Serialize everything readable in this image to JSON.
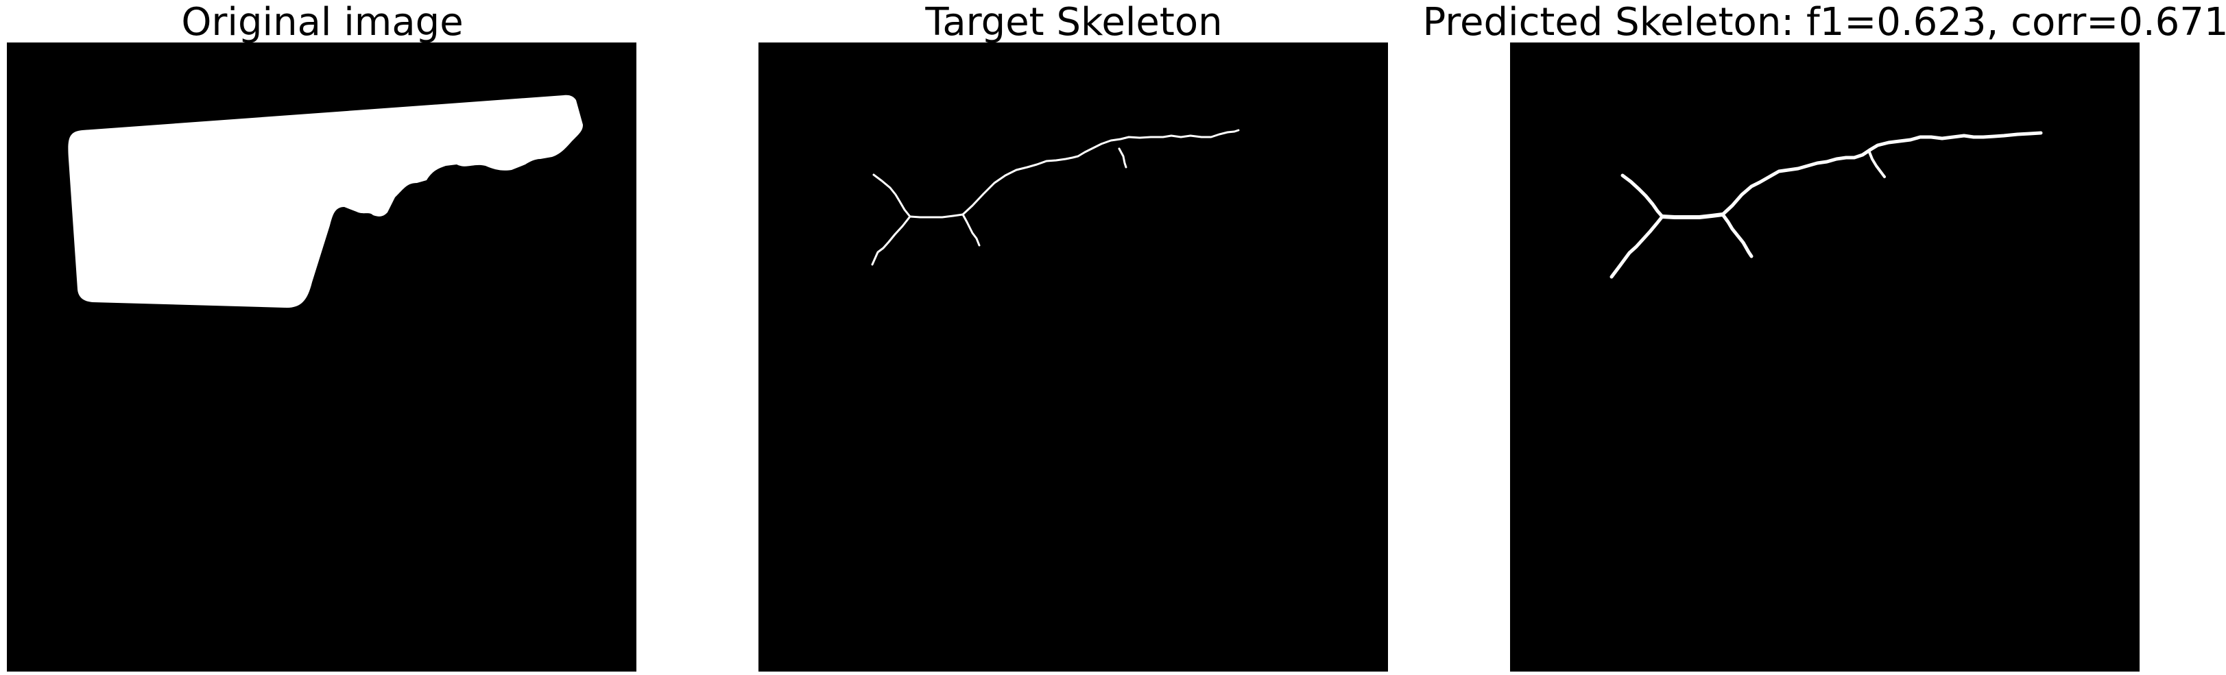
{
  "panels": [
    {
      "id": "original",
      "title": "Original image",
      "content": "filled-mask"
    },
    {
      "id": "target",
      "title": "Target Skeleton",
      "content": "skeleton"
    },
    {
      "id": "predicted",
      "title": "Predicted Skeleton: f1=0.623, corr=0.671",
      "content": "skeleton"
    }
  ],
  "colors": {
    "background": "#000000",
    "foreground": "#ffffff",
    "title_text": "#000000"
  }
}
